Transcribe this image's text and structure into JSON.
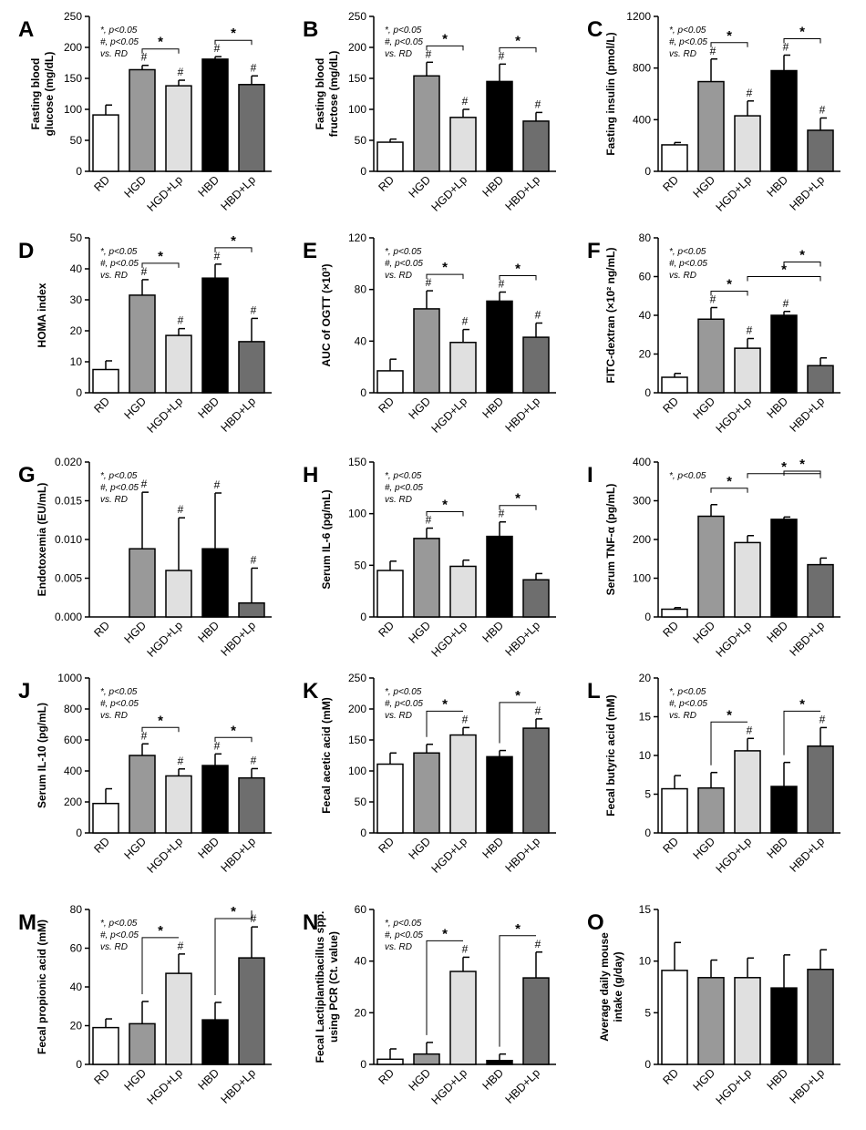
{
  "colors": {
    "RD": "#ffffff",
    "HGD": "#999999",
    "HGD+Lp": "#e0e0e0",
    "HBD": "#000000",
    "HBD+Lp": "#6e6e6e",
    "axis": "#000000"
  },
  "chart_data": [
    {
      "panel": "A",
      "type": "bar",
      "categories": [
        "RD",
        "HGD",
        "HGD+Lp",
        "HBD",
        "HBD+Lp"
      ],
      "values": [
        91,
        164,
        138,
        181,
        140
      ],
      "errors": [
        16,
        7,
        9,
        4,
        14
      ],
      "ylabel": [
        "Fasting blood",
        "glucose (mg/dL)"
      ],
      "ylim": [
        0,
        250
      ],
      "yticks": [
        "0",
        "50",
        "100",
        "150",
        "200",
        "250"
      ],
      "hash": [
        false,
        true,
        true,
        true,
        true
      ],
      "brackets": [
        {
          "from": 1,
          "to": 2
        },
        {
          "from": 3,
          "to": 4
        }
      ],
      "legend": [
        "*, p<0.05",
        "#, p<0.05",
        "vs. RD"
      ]
    },
    {
      "panel": "B",
      "type": "bar",
      "categories": [
        "RD",
        "HGD",
        "HGD+Lp",
        "HBD",
        "HBD+Lp"
      ],
      "values": [
        47,
        154,
        87,
        145,
        81
      ],
      "errors": [
        5,
        22,
        13,
        28,
        14
      ],
      "ylabel": [
        "Fasting blood",
        "fructose (mg/dL)"
      ],
      "ylim": [
        0,
        250
      ],
      "yticks": [
        "0",
        "50",
        "100",
        "150",
        "200",
        "250"
      ],
      "hash": [
        false,
        true,
        true,
        true,
        true
      ],
      "brackets": [
        {
          "from": 1,
          "to": 2
        },
        {
          "from": 3,
          "to": 4
        }
      ],
      "legend": [
        "*, p<0.05",
        "#, p<0.05",
        "vs. RD"
      ]
    },
    {
      "panel": "C",
      "type": "bar",
      "categories": [
        "RD",
        "HGD",
        "HGD+Lp",
        "HBD",
        "HBD+Lp"
      ],
      "values": [
        205,
        695,
        430,
        780,
        318
      ],
      "errors": [
        18,
        175,
        115,
        120,
        95
      ],
      "ylabel": [
        "Fasting insulin (pmol/L)"
      ],
      "ylim": [
        0,
        1200
      ],
      "yticks": [
        "0",
        "400",
        "800",
        "1200"
      ],
      "hash": [
        false,
        true,
        true,
        true,
        true
      ],
      "brackets": [
        {
          "from": 1,
          "to": 2
        },
        {
          "from": 3,
          "to": 4
        }
      ],
      "legend": [
        "*, p<0.05",
        "#, p<0.05",
        "vs. RD"
      ]
    },
    {
      "panel": "D",
      "type": "bar",
      "categories": [
        "RD",
        "HGD",
        "HGD+Lp",
        "HBD",
        "HBD+Lp"
      ],
      "values": [
        7.5,
        31.5,
        18.5,
        37,
        16.5
      ],
      "errors": [
        2.8,
        5,
        2.2,
        4.5,
        7.5
      ],
      "ylabel": [
        "HOMA index"
      ],
      "ylim": [
        0,
        50
      ],
      "yticks": [
        "0",
        "10",
        "20",
        "30",
        "40",
        "50"
      ],
      "hash": [
        false,
        true,
        true,
        true,
        true
      ],
      "brackets": [
        {
          "from": 1,
          "to": 2
        },
        {
          "from": 3,
          "to": 4
        }
      ],
      "legend": [
        "*, p<0.05",
        "#, p<0.05",
        "vs. RD"
      ]
    },
    {
      "panel": "E",
      "type": "bar",
      "categories": [
        "RD",
        "HGD",
        "HGD+Lp",
        "HBD",
        "HBD+Lp"
      ],
      "values": [
        17,
        65,
        39,
        71,
        43
      ],
      "errors": [
        9,
        14,
        10,
        7,
        11
      ],
      "ylabel": [
        "AUC of OGTT (×10³)"
      ],
      "ylim": [
        0,
        120
      ],
      "yticks": [
        "0",
        "40",
        "80",
        "120"
      ],
      "hash": [
        false,
        true,
        true,
        true,
        true
      ],
      "brackets": [
        {
          "from": 1,
          "to": 2
        },
        {
          "from": 3,
          "to": 4
        }
      ],
      "legend": [
        "*, p<0.05",
        "#, p<0.05",
        "vs. RD"
      ]
    },
    {
      "panel": "F",
      "type": "bar",
      "categories": [
        "RD",
        "HGD",
        "HGD+Lp",
        "HBD",
        "HBD+Lp"
      ],
      "values": [
        8,
        38,
        23,
        40,
        14
      ],
      "errors": [
        2,
        6,
        5,
        2,
        4
      ],
      "ylabel": [
        "FITC-dextran (×10² ng/mL)"
      ],
      "ylim": [
        0,
        80
      ],
      "yticks": [
        "0",
        "20",
        "40",
        "60",
        "80"
      ],
      "hash": [
        false,
        true,
        true,
        true,
        false
      ],
      "brackets": [
        {
          "from": 1,
          "to": 2
        },
        {
          "from": 2,
          "to": 4
        },
        {
          "from": 3,
          "to": 4
        }
      ],
      "legend": [
        "*, p<0.05",
        "#, p<0.05",
        "vs. RD"
      ]
    },
    {
      "panel": "G",
      "type": "bar",
      "categories": [
        "RD",
        "HGD",
        "HGD+Lp",
        "HBD",
        "HBD+Lp"
      ],
      "values": [
        0,
        0.0088,
        0.006,
        0.0088,
        0.0018
      ],
      "errors": [
        0,
        0.0073,
        0.0068,
        0.0072,
        0.0045
      ],
      "ylabel": [
        "Endotoxemia (EU/mL)"
      ],
      "ylim": [
        0,
        0.02
      ],
      "yticks": [
        "0.000",
        "0.005",
        "0.010",
        "0.015",
        "0.020"
      ],
      "hash": [
        false,
        true,
        true,
        true,
        true
      ],
      "brackets": [],
      "legend": [
        "*, p<0.05",
        "#, p<0.05",
        "vs. RD"
      ]
    },
    {
      "panel": "H",
      "type": "bar",
      "categories": [
        "RD",
        "HGD",
        "HGD+Lp",
        "HBD",
        "HBD+Lp"
      ],
      "values": [
        45,
        76,
        49,
        78,
        36
      ],
      "errors": [
        9,
        10,
        6,
        14,
        6
      ],
      "ylabel": [
        "Serum IL-6 (pg/mL)"
      ],
      "ylim": [
        0,
        150
      ],
      "yticks": [
        "0",
        "50",
        "100",
        "150"
      ],
      "hash": [
        false,
        true,
        false,
        true,
        false
      ],
      "brackets": [
        {
          "from": 1,
          "to": 2
        },
        {
          "from": 3,
          "to": 4
        }
      ],
      "legend": [
        "*, p<0.05",
        "#, p<0.05",
        "vs. RD"
      ]
    },
    {
      "panel": "I",
      "type": "bar",
      "categories": [
        "RD",
        "HGD",
        "HGD+Lp",
        "HBD",
        "HBD+Lp"
      ],
      "values": [
        20,
        260,
        192,
        252,
        135
      ],
      "errors": [
        4,
        30,
        18,
        6,
        17
      ],
      "ylabel": [
        "Serum TNF-α  (pg/mL)"
      ],
      "ylim": [
        0,
        400
      ],
      "yticks": [
        "0",
        "100",
        "200",
        "300",
        "400"
      ],
      "hash": [
        false,
        false,
        false,
        false,
        false
      ],
      "brackets": [
        {
          "from": 1,
          "to": 2
        },
        {
          "from": 2,
          "to": 4
        },
        {
          "from": 3,
          "to": 4
        }
      ],
      "legend": [
        "*, p<0.05"
      ]
    },
    {
      "panel": "J",
      "type": "bar",
      "categories": [
        "RD",
        "HGD",
        "HGD+Lp",
        "HBD",
        "HBD+Lp"
      ],
      "values": [
        190,
        500,
        368,
        435,
        355
      ],
      "errors": [
        95,
        75,
        45,
        75,
        60
      ],
      "ylabel": [
        "Serum IL-10 (pg/mL)"
      ],
      "ylim": [
        0,
        1000
      ],
      "yticks": [
        "0",
        "200",
        "400",
        "600",
        "800",
        "1000"
      ],
      "hash": [
        false,
        true,
        true,
        true,
        true
      ],
      "brackets": [
        {
          "from": 1,
          "to": 2
        },
        {
          "from": 3,
          "to": 4
        }
      ],
      "legend": [
        "*, p<0.05",
        "#, p<0.05",
        "vs. RD"
      ]
    },
    {
      "panel": "K",
      "type": "bar",
      "categories": [
        "RD",
        "HGD",
        "HGD+Lp",
        "HBD",
        "HBD+Lp"
      ],
      "values": [
        111,
        129,
        158,
        123,
        169
      ],
      "errors": [
        18,
        14,
        12,
        10,
        15
      ],
      "ylabel": [
        "Fecal acetic acid (mM)"
      ],
      "ylim": [
        0,
        250
      ],
      "yticks": [
        "0",
        "50",
        "100",
        "150",
        "200",
        "250"
      ],
      "hash": [
        false,
        false,
        true,
        false,
        true
      ],
      "brackets": [
        {
          "from": 1,
          "to": 2,
          "drop": true
        },
        {
          "from": 3,
          "to": 4,
          "drop": true
        }
      ],
      "legend": [
        "*, p<0.05",
        "#, p<0.05",
        "vs. RD"
      ]
    },
    {
      "panel": "L",
      "type": "bar",
      "categories": [
        "RD",
        "HGD",
        "HGD+Lp",
        "HBD",
        "HBD+Lp"
      ],
      "values": [
        5.7,
        5.8,
        10.6,
        6.0,
        11.2
      ],
      "errors": [
        1.7,
        2.0,
        1.6,
        3.1,
        2.4
      ],
      "ylabel": [
        "Fecal butyric acid (mM)"
      ],
      "ylim": [
        0,
        20
      ],
      "yticks": [
        "0",
        "5",
        "10",
        "15",
        "20"
      ],
      "hash": [
        false,
        false,
        true,
        false,
        true
      ],
      "brackets": [
        {
          "from": 1,
          "to": 2,
          "drop": true
        },
        {
          "from": 3,
          "to": 4,
          "drop": true
        }
      ],
      "legend": [
        "*, p<0.05",
        "#, p<0.05",
        "vs. RD"
      ]
    },
    {
      "panel": "M",
      "type": "bar",
      "categories": [
        "RD",
        "HGD",
        "HGD+Lp",
        "HBD",
        "HBD+Lp"
      ],
      "values": [
        19,
        21,
        47,
        23,
        55
      ],
      "errors": [
        4.5,
        11.5,
        10,
        9,
        16
      ],
      "ylabel": [
        "Fecal propionic acid (mM)"
      ],
      "ylim": [
        0,
        80
      ],
      "yticks": [
        "0",
        "20",
        "40",
        "60",
        "80"
      ],
      "hash": [
        false,
        false,
        true,
        false,
        true
      ],
      "brackets": [
        {
          "from": 1,
          "to": 2,
          "drop": true
        },
        {
          "from": 3,
          "to": 4,
          "drop": true
        }
      ],
      "legend": [
        "*, p<0.05",
        "#, p<0.05",
        "vs. RD"
      ]
    },
    {
      "panel": "N",
      "type": "bar",
      "categories": [
        "RD",
        "HGD",
        "HGD+Lp",
        "HBD",
        "HBD+Lp"
      ],
      "values": [
        2,
        4,
        36,
        1.5,
        33.5
      ],
      "errors": [
        4,
        4.5,
        5.5,
        2.5,
        10
      ],
      "ylabel": [
        "Fecal Lactiplantibacillus spp.",
        "using PCR (Ct. value)"
      ],
      "ylim": [
        0,
        60
      ],
      "yticks": [
        "0",
        "20",
        "40",
        "60"
      ],
      "hash": [
        false,
        false,
        true,
        false,
        true
      ],
      "brackets": [
        {
          "from": 1,
          "to": 2,
          "drop": true
        },
        {
          "from": 3,
          "to": 4,
          "drop": true
        }
      ],
      "legend": [
        "*, p<0.05",
        "#, p<0.05",
        "vs. RD"
      ]
    },
    {
      "panel": "O",
      "type": "bar",
      "categories": [
        "RD",
        "HGD",
        "HGD+Lp",
        "HBD",
        "HBD+Lp"
      ],
      "values": [
        9.1,
        8.4,
        8.4,
        7.4,
        9.2
      ],
      "errors": [
        2.7,
        1.7,
        1.9,
        3.2,
        1.9
      ],
      "ylabel": [
        "Average daily mouse",
        "intake (g/day)"
      ],
      "ylim": [
        0,
        15
      ],
      "yticks": [
        "0",
        "5",
        "10",
        "15"
      ],
      "hash": [
        false,
        false,
        false,
        false,
        false
      ],
      "brackets": [],
      "legend": []
    }
  ]
}
